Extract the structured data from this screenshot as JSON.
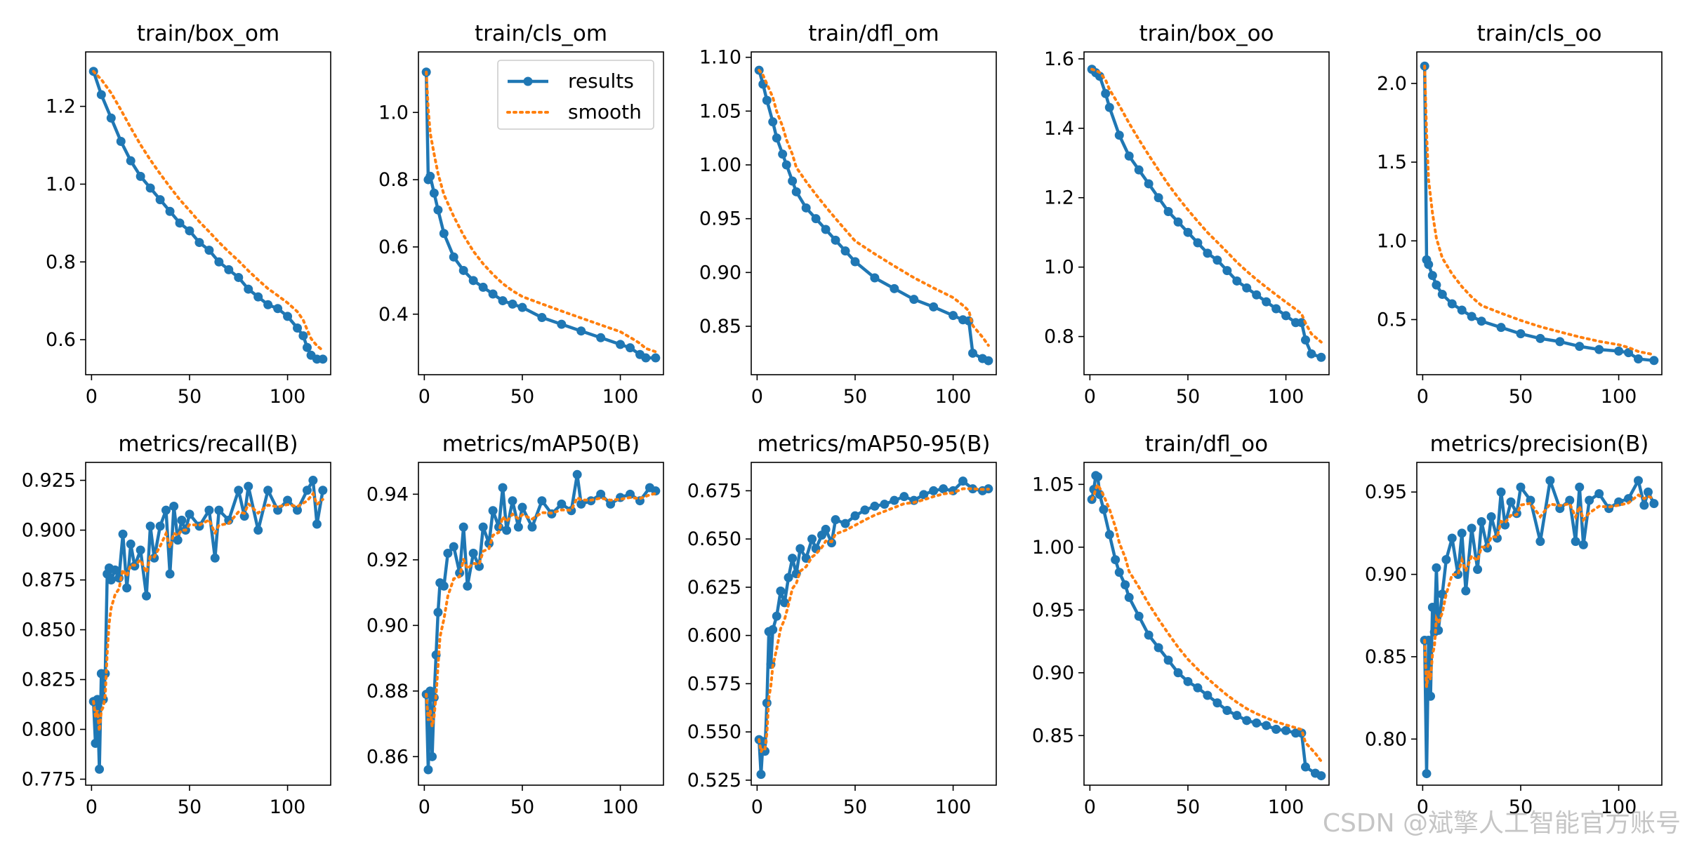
{
  "watermark": "CSDN @斌擎人工智能官方账号",
  "legend": {
    "results": "results",
    "smooth": "smooth"
  },
  "colors": {
    "results": "#1f77b4",
    "smooth": "#ff7f0e",
    "axes": "#000000"
  },
  "chart_data": [
    {
      "type": "line",
      "title": "train/box_om",
      "xlim": [
        -3,
        122
      ],
      "ylim": [
        0.51,
        1.34
      ],
      "xticks": [
        0,
        50,
        100
      ],
      "yticks": [
        0.6,
        0.8,
        1.0,
        1.2
      ],
      "ytick_labels": [
        "0.6",
        "0.8",
        "1.0",
        "1.2"
      ],
      "legend": false,
      "series": [
        {
          "name": "results",
          "x": [
            1,
            5,
            10,
            15,
            20,
            25,
            30,
            35,
            40,
            45,
            50,
            55,
            60,
            65,
            70,
            75,
            80,
            85,
            90,
            95,
            100,
            105,
            108,
            110,
            112,
            115,
            118
          ],
          "values": [
            1.29,
            1.23,
            1.17,
            1.11,
            1.06,
            1.02,
            0.99,
            0.96,
            0.93,
            0.9,
            0.88,
            0.85,
            0.83,
            0.8,
            0.78,
            0.76,
            0.73,
            0.71,
            0.69,
            0.68,
            0.66,
            0.63,
            0.61,
            0.58,
            0.56,
            0.55,
            0.55
          ]
        }
      ]
    },
    {
      "type": "line",
      "title": "train/cls_om",
      "xlim": [
        -3,
        122
      ],
      "ylim": [
        0.22,
        1.18
      ],
      "xticks": [
        0,
        50,
        100
      ],
      "yticks": [
        0.4,
        0.6,
        0.8,
        1.0
      ],
      "ytick_labels": [
        "0.4",
        "0.6",
        "0.8",
        "1.0"
      ],
      "legend": true,
      "series": [
        {
          "name": "results",
          "x": [
            1,
            2,
            3,
            5,
            7,
            10,
            15,
            20,
            25,
            30,
            35,
            40,
            45,
            50,
            60,
            70,
            80,
            90,
            100,
            105,
            110,
            113,
            118
          ],
          "values": [
            1.12,
            0.8,
            0.81,
            0.76,
            0.71,
            0.64,
            0.57,
            0.53,
            0.5,
            0.48,
            0.46,
            0.44,
            0.43,
            0.42,
            0.39,
            0.37,
            0.35,
            0.33,
            0.31,
            0.3,
            0.28,
            0.27,
            0.27
          ]
        }
      ]
    },
    {
      "type": "line",
      "title": "train/dfl_om",
      "xlim": [
        -3,
        122
      ],
      "ylim": [
        0.805,
        1.105
      ],
      "xticks": [
        0,
        50,
        100
      ],
      "yticks": [
        0.85,
        0.9,
        0.95,
        1.0,
        1.05,
        1.1
      ],
      "ytick_labels": [
        "0.85",
        "0.90",
        "0.95",
        "1.00",
        "1.05",
        "1.10"
      ],
      "legend": false,
      "series": [
        {
          "name": "results",
          "x": [
            1,
            3,
            5,
            8,
            10,
            13,
            15,
            18,
            20,
            25,
            30,
            35,
            40,
            45,
            50,
            60,
            70,
            80,
            90,
            100,
            105,
            108,
            110,
            115,
            118
          ],
          "values": [
            1.088,
            1.075,
            1.06,
            1.04,
            1.025,
            1.01,
            1.0,
            0.985,
            0.975,
            0.96,
            0.95,
            0.94,
            0.93,
            0.92,
            0.91,
            0.895,
            0.885,
            0.875,
            0.868,
            0.86,
            0.856,
            0.855,
            0.825,
            0.82,
            0.818
          ]
        }
      ]
    },
    {
      "type": "line",
      "title": "train/box_oo",
      "xlim": [
        -3,
        122
      ],
      "ylim": [
        0.69,
        1.62
      ],
      "xticks": [
        0,
        50,
        100
      ],
      "yticks": [
        0.8,
        1.0,
        1.2,
        1.4,
        1.6
      ],
      "ytick_labels": [
        "0.8",
        "1.0",
        "1.2",
        "1.4",
        "1.6"
      ],
      "legend": false,
      "series": [
        {
          "name": "results",
          "x": [
            1,
            3,
            5,
            8,
            10,
            15,
            20,
            25,
            30,
            35,
            40,
            45,
            50,
            55,
            60,
            65,
            70,
            75,
            80,
            85,
            90,
            95,
            100,
            105,
            108,
            110,
            113,
            118
          ],
          "values": [
            1.57,
            1.56,
            1.55,
            1.5,
            1.46,
            1.38,
            1.32,
            1.28,
            1.24,
            1.2,
            1.16,
            1.13,
            1.1,
            1.07,
            1.04,
            1.02,
            0.99,
            0.96,
            0.94,
            0.92,
            0.9,
            0.88,
            0.86,
            0.84,
            0.84,
            0.79,
            0.75,
            0.74
          ]
        }
      ]
    },
    {
      "type": "line",
      "title": "train/cls_oo",
      "xlim": [
        -3,
        122
      ],
      "ylim": [
        0.15,
        2.2
      ],
      "xticks": [
        0,
        50,
        100
      ],
      "yticks": [
        0.5,
        1.0,
        1.5,
        2.0
      ],
      "ytick_labels": [
        "0.5",
        "1.0",
        "1.5",
        "2.0"
      ],
      "legend": false,
      "series": [
        {
          "name": "results",
          "x": [
            1,
            2,
            3,
            5,
            7,
            10,
            15,
            20,
            25,
            30,
            40,
            50,
            60,
            70,
            80,
            90,
            100,
            105,
            110,
            118
          ],
          "values": [
            2.11,
            0.88,
            0.85,
            0.78,
            0.72,
            0.66,
            0.6,
            0.56,
            0.52,
            0.49,
            0.45,
            0.41,
            0.38,
            0.36,
            0.33,
            0.31,
            0.3,
            0.29,
            0.25,
            0.24
          ]
        }
      ]
    },
    {
      "type": "line",
      "title": "metrics/recall(B)",
      "xlim": [
        -3,
        122
      ],
      "ylim": [
        0.772,
        0.934
      ],
      "xticks": [
        0,
        50,
        100
      ],
      "yticks": [
        0.775,
        0.8,
        0.825,
        0.85,
        0.875,
        0.9,
        0.925
      ],
      "ytick_labels": [
        "0.775",
        "0.800",
        "0.825",
        "0.850",
        "0.875",
        "0.900",
        "0.925"
      ],
      "legend": false,
      "series": [
        {
          "name": "results",
          "x": [
            1,
            2,
            3,
            4,
            5,
            6,
            7,
            8,
            9,
            10,
            12,
            14,
            16,
            18,
            20,
            22,
            25,
            28,
            30,
            32,
            35,
            38,
            40,
            42,
            44,
            46,
            48,
            50,
            55,
            60,
            63,
            65,
            70,
            75,
            78,
            80,
            85,
            90,
            95,
            100,
            105,
            110,
            113,
            115,
            118
          ],
          "values": [
            0.814,
            0.793,
            0.815,
            0.78,
            0.828,
            0.815,
            0.828,
            0.878,
            0.881,
            0.875,
            0.88,
            0.876,
            0.898,
            0.871,
            0.893,
            0.882,
            0.89,
            0.867,
            0.902,
            0.886,
            0.902,
            0.91,
            0.878,
            0.912,
            0.895,
            0.905,
            0.9,
            0.908,
            0.902,
            0.91,
            0.886,
            0.91,
            0.905,
            0.92,
            0.907,
            0.922,
            0.9,
            0.92,
            0.91,
            0.915,
            0.91,
            0.92,
            0.925,
            0.903,
            0.92
          ]
        }
      ]
    },
    {
      "type": "line",
      "title": "metrics/mAP50(B)",
      "xlim": [
        -3,
        122
      ],
      "ylim": [
        0.8513,
        0.9497
      ],
      "xticks": [
        0,
        50,
        100
      ],
      "yticks": [
        0.86,
        0.88,
        0.9,
        0.92,
        0.94
      ],
      "ytick_labels": [
        "0.86",
        "0.88",
        "0.90",
        "0.92",
        "0.94"
      ],
      "legend": false,
      "series": [
        {
          "name": "results",
          "x": [
            1,
            2,
            3,
            4,
            5,
            6,
            7,
            8,
            10,
            12,
            15,
            18,
            20,
            22,
            25,
            28,
            30,
            33,
            35,
            38,
            40,
            42,
            45,
            48,
            50,
            55,
            60,
            65,
            70,
            75,
            78,
            80,
            85,
            90,
            95,
            100,
            105,
            110,
            115,
            118
          ],
          "values": [
            0.879,
            0.856,
            0.88,
            0.86,
            0.878,
            0.891,
            0.904,
            0.913,
            0.912,
            0.922,
            0.924,
            0.916,
            0.93,
            0.912,
            0.922,
            0.918,
            0.93,
            0.925,
            0.935,
            0.93,
            0.942,
            0.929,
            0.938,
            0.93,
            0.936,
            0.93,
            0.938,
            0.934,
            0.937,
            0.935,
            0.946,
            0.937,
            0.938,
            0.94,
            0.937,
            0.939,
            0.94,
            0.938,
            0.942,
            0.941
          ]
        }
      ]
    },
    {
      "type": "line",
      "title": "metrics/mAP50-95(B)",
      "xlim": [
        -3,
        122
      ],
      "ylim": [
        0.5224,
        0.6897
      ],
      "xticks": [
        0,
        50,
        100
      ],
      "yticks": [
        0.525,
        0.55,
        0.575,
        0.6,
        0.625,
        0.65,
        0.675
      ],
      "ytick_labels": [
        "0.525",
        "0.550",
        "0.575",
        "0.600",
        "0.625",
        "0.650",
        "0.675"
      ],
      "legend": false,
      "series": [
        {
          "name": "results",
          "x": [
            1,
            2,
            3,
            4,
            5,
            6,
            7,
            8,
            10,
            12,
            14,
            16,
            18,
            20,
            22,
            25,
            28,
            30,
            33,
            35,
            38,
            40,
            45,
            50,
            55,
            60,
            65,
            70,
            75,
            80,
            85,
            90,
            95,
            100,
            105,
            110,
            115,
            118
          ],
          "values": [
            0.546,
            0.528,
            0.545,
            0.54,
            0.565,
            0.602,
            0.585,
            0.603,
            0.61,
            0.623,
            0.617,
            0.63,
            0.64,
            0.632,
            0.645,
            0.64,
            0.65,
            0.645,
            0.652,
            0.655,
            0.648,
            0.66,
            0.658,
            0.662,
            0.665,
            0.667,
            0.668,
            0.67,
            0.672,
            0.67,
            0.673,
            0.675,
            0.676,
            0.675,
            0.68,
            0.676,
            0.675,
            0.676
          ]
        }
      ]
    },
    {
      "type": "line",
      "title": "train/dfl_oo",
      "xlim": [
        -3,
        122
      ],
      "ylim": [
        0.8105,
        1.0675
      ],
      "xticks": [
        0,
        50,
        100
      ],
      "yticks": [
        0.85,
        0.9,
        0.95,
        1.0,
        1.05
      ],
      "ytick_labels": [
        "0.85",
        "0.90",
        "0.95",
        "1.00",
        "1.05"
      ],
      "legend": false,
      "series": [
        {
          "name": "results",
          "x": [
            1,
            2,
            3,
            4,
            5,
            7,
            10,
            13,
            15,
            18,
            20,
            25,
            30,
            35,
            40,
            45,
            50,
            55,
            60,
            65,
            70,
            75,
            80,
            85,
            90,
            95,
            100,
            105,
            108,
            110,
            115,
            118
          ],
          "values": [
            1.038,
            1.046,
            1.057,
            1.056,
            1.042,
            1.03,
            1.01,
            0.99,
            0.98,
            0.97,
            0.96,
            0.945,
            0.93,
            0.92,
            0.91,
            0.9,
            0.893,
            0.888,
            0.882,
            0.876,
            0.87,
            0.866,
            0.862,
            0.86,
            0.858,
            0.855,
            0.854,
            0.852,
            0.852,
            0.825,
            0.82,
            0.818
          ]
        }
      ]
    },
    {
      "type": "line",
      "title": "metrics/precision(B)",
      "xlim": [
        -3,
        122
      ],
      "ylim": [
        0.772,
        0.968
      ],
      "xticks": [
        0,
        50,
        100
      ],
      "yticks": [
        0.8,
        0.85,
        0.9,
        0.95
      ],
      "ytick_labels": [
        "0.80",
        "0.85",
        "0.90",
        "0.95"
      ],
      "legend": false,
      "series": [
        {
          "name": "results",
          "x": [
            1,
            2,
            3,
            4,
            5,
            6,
            7,
            8,
            10,
            12,
            15,
            18,
            20,
            22,
            25,
            28,
            30,
            33,
            35,
            38,
            40,
            42,
            45,
            48,
            50,
            55,
            60,
            65,
            70,
            75,
            78,
            80,
            82,
            85,
            90,
            95,
            100,
            105,
            110,
            113,
            115,
            118
          ],
          "values": [
            0.86,
            0.779,
            0.86,
            0.826,
            0.88,
            0.865,
            0.904,
            0.866,
            0.888,
            0.909,
            0.922,
            0.9,
            0.925,
            0.89,
            0.928,
            0.903,
            0.932,
            0.916,
            0.935,
            0.922,
            0.95,
            0.93,
            0.944,
            0.937,
            0.953,
            0.945,
            0.92,
            0.957,
            0.94,
            0.945,
            0.92,
            0.953,
            0.918,
            0.945,
            0.949,
            0.94,
            0.944,
            0.946,
            0.957,
            0.942,
            0.95,
            0.943
          ]
        }
      ]
    }
  ]
}
